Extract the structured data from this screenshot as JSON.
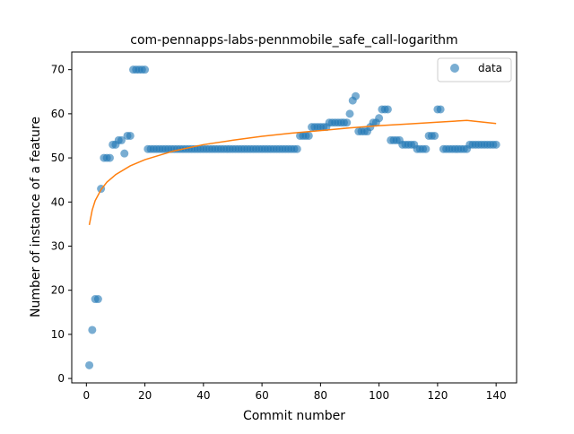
{
  "chart_data": {
    "type": "scatter",
    "title": "com-pennapps-labs-pennmobile_safe_call-logarithm",
    "xlabel": "Commit number",
    "ylabel": "Number of instance of a feature",
    "xlim": [
      -5,
      147
    ],
    "ylim": [
      -1,
      74
    ],
    "xticks": [
      0,
      20,
      40,
      60,
      80,
      100,
      120,
      140
    ],
    "yticks": [
      0,
      10,
      20,
      30,
      40,
      50,
      60,
      70
    ],
    "grid": false,
    "legend": {
      "position": "top-right",
      "entries": [
        "data"
      ]
    },
    "colors": {
      "data": "#1f77b4",
      "fit": "#ff7f0e"
    },
    "series": [
      {
        "name": "data",
        "kind": "scatter",
        "x": [
          1,
          2,
          3,
          4,
          5,
          6,
          7,
          8,
          9,
          10,
          11,
          12,
          13,
          14,
          15,
          16,
          17,
          18,
          19,
          20,
          21,
          22,
          23,
          24,
          25,
          26,
          27,
          28,
          29,
          30,
          31,
          32,
          33,
          34,
          35,
          36,
          37,
          38,
          39,
          40,
          41,
          42,
          43,
          44,
          45,
          46,
          47,
          48,
          49,
          50,
          51,
          52,
          53,
          54,
          55,
          56,
          57,
          58,
          59,
          60,
          61,
          62,
          63,
          64,
          65,
          66,
          67,
          68,
          69,
          70,
          71,
          72,
          73,
          74,
          75,
          76,
          77,
          78,
          79,
          80,
          81,
          82,
          83,
          84,
          85,
          86,
          87,
          88,
          89,
          90,
          91,
          92,
          93,
          94,
          95,
          96,
          97,
          98,
          99,
          100,
          101,
          102,
          103,
          104,
          105,
          106,
          107,
          108,
          109,
          110,
          111,
          112,
          113,
          114,
          115,
          116,
          117,
          118,
          119,
          120,
          121,
          122,
          123,
          124,
          125,
          126,
          127,
          128,
          129,
          130,
          131,
          132,
          133,
          134,
          135,
          136,
          137,
          138,
          139,
          140
        ],
        "y": [
          3,
          11,
          18,
          18,
          43,
          50,
          50,
          50,
          53,
          53,
          54,
          54,
          51,
          55,
          55,
          70,
          70,
          70,
          70,
          70,
          52,
          52,
          52,
          52,
          52,
          52,
          52,
          52,
          52,
          52,
          52,
          52,
          52,
          52,
          52,
          52,
          52,
          52,
          52,
          52,
          52,
          52,
          52,
          52,
          52,
          52,
          52,
          52,
          52,
          52,
          52,
          52,
          52,
          52,
          52,
          52,
          52,
          52,
          52,
          52,
          52,
          52,
          52,
          52,
          52,
          52,
          52,
          52,
          52,
          52,
          52,
          52,
          55,
          55,
          55,
          55,
          57,
          57,
          57,
          57,
          57,
          57,
          58,
          58,
          58,
          58,
          58,
          58,
          58,
          60,
          63,
          64,
          56,
          56,
          56,
          56,
          57,
          58,
          58,
          59,
          61,
          61,
          61,
          54,
          54,
          54,
          54,
          53,
          53,
          53,
          53,
          53,
          52,
          52,
          52,
          52,
          55,
          55,
          55,
          61,
          61,
          52,
          52,
          52,
          52,
          52,
          52,
          52,
          52,
          52,
          53,
          53,
          53,
          53,
          53,
          53,
          53,
          53,
          53,
          53
        ]
      },
      {
        "kind": "line",
        "fit": "logarithmic",
        "x": [
          1,
          2,
          3,
          5,
          7,
          10,
          15,
          20,
          30,
          40,
          50,
          60,
          70,
          80,
          90,
          100,
          110,
          120,
          130,
          140
        ],
        "y": [
          34.8,
          38.2,
          40.3,
          42.8,
          44.5,
          46.2,
          48.2,
          49.6,
          51.6,
          53.0,
          54.0,
          54.9,
          55.6,
          56.2,
          56.8,
          57.3,
          57.7,
          58.1,
          58.5,
          57.8
        ]
      }
    ]
  }
}
